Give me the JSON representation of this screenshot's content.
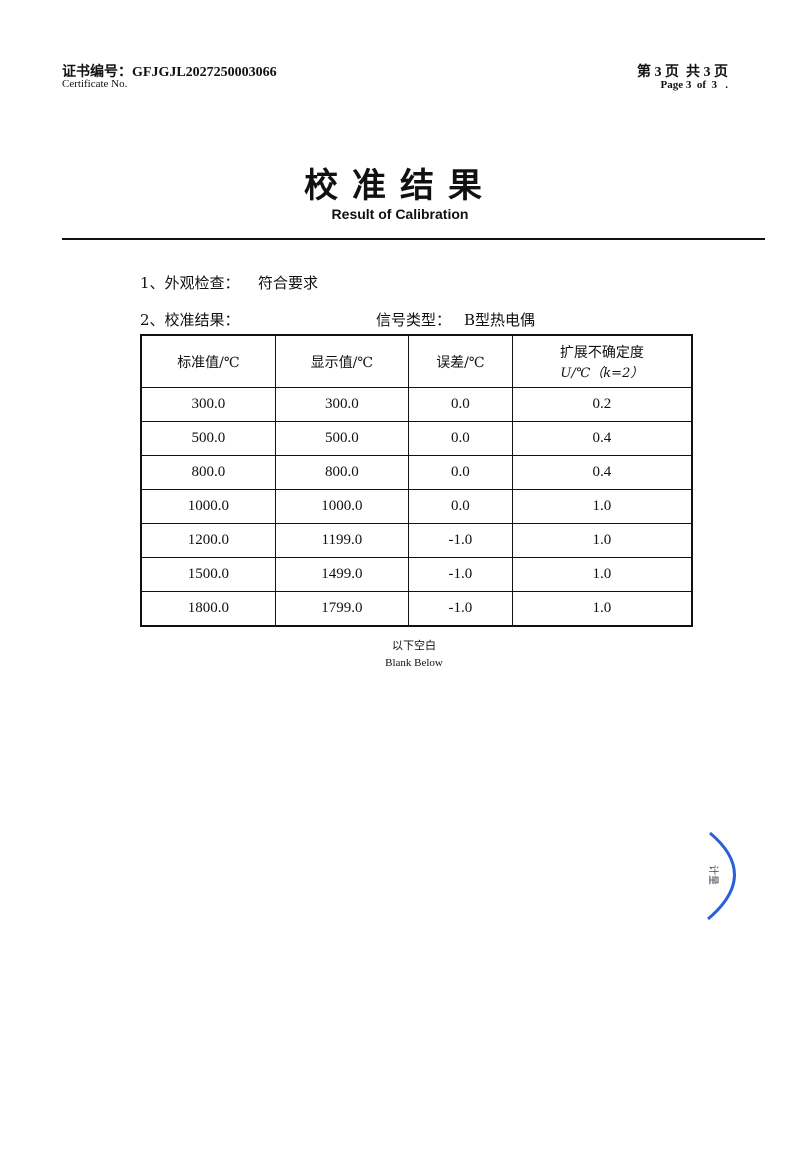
{
  "header": {
    "certificate_label": "证书编号：",
    "certificate_number": "GFJGJL2027250003066",
    "certificate_label_en": "Certificate No.",
    "page_cn": "第 3 页  共 3 页",
    "page_en": "Page 3  of  3   ."
  },
  "title": "校准结果",
  "subtitle": "Result of Calibration",
  "items": {
    "appearance_label": "1、外观检查：",
    "appearance_value": "符合要求",
    "result_label": "2、校准结果：",
    "signal_label": "信号类型：",
    "signal_value": "B型热电偶"
  },
  "table": {
    "headers": [
      "标准值/℃",
      "显示值/℃",
      "误差/℃",
      "扩展不确定度"
    ],
    "header_extra": "U/℃（k=2）",
    "rows": [
      [
        "300.0",
        "300.0",
        "0.0",
        "0.2"
      ],
      [
        "500.0",
        "500.0",
        "0.0",
        "0.4"
      ],
      [
        "800.0",
        "800.0",
        "0.0",
        "0.4"
      ],
      [
        "1000.0",
        "1000.0",
        "0.0",
        "1.0"
      ],
      [
        "1200.0",
        "1199.0",
        "-1.0",
        "1.0"
      ],
      [
        "1500.0",
        "1499.0",
        "-1.0",
        "1.0"
      ],
      [
        "1800.0",
        "1799.0",
        "-1.0",
        "1.0"
      ]
    ]
  },
  "blank_cn": "以下空白",
  "blank_en": "Blank Below",
  "stamp_color": "#2a5fd6"
}
